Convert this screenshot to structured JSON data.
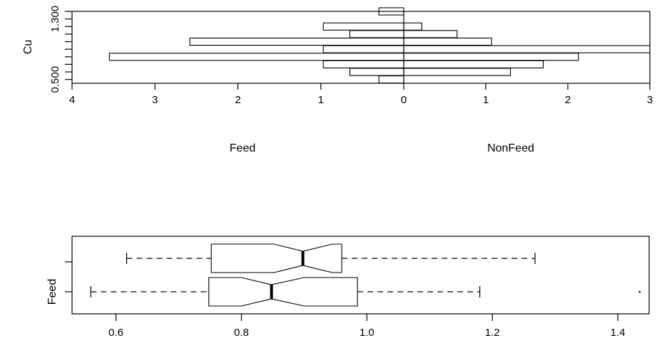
{
  "chart_data": [
    {
      "type": "back-to-back histogram",
      "ylabel": "Cu",
      "y_ticks": [
        "0.500",
        "1.300"
      ],
      "y_ticks_extra": [
        0.5,
        0.6,
        0.7,
        0.8,
        0.9,
        1.0,
        1.1,
        1.2,
        1.3,
        1.4
      ],
      "bins": [
        0.5,
        0.6,
        0.7,
        0.8,
        0.9,
        1.0,
        1.1,
        1.2,
        1.3,
        1.4
      ],
      "left_side": {
        "label": "Feed",
        "xlim": [
          4,
          0
        ],
        "ticks": [
          "4",
          "3",
          "2",
          "1",
          "0"
        ],
        "values": [
          0.3,
          0.65,
          0.97,
          3.55,
          0.97,
          2.58,
          0.65,
          0.97,
          0,
          0.3
        ]
      },
      "right_side": {
        "label": "NonFeed",
        "xlim": [
          0,
          3
        ],
        "ticks": [
          "0",
          "1",
          "2",
          "3"
        ],
        "values": [
          0,
          1.3,
          1.7,
          2.13,
          3.0,
          1.07,
          0.65,
          0.22,
          0,
          0
        ]
      }
    },
    {
      "type": "box",
      "orientation": "horizontal",
      "notched": true,
      "ylabel": "Feed",
      "xlim": [
        0.53,
        1.45
      ],
      "x_ticks": [
        "0.6",
        "0.8",
        "1.0",
        "1.2",
        "1.4"
      ],
      "boxes": [
        {
          "min": 0.56,
          "q1": 0.748,
          "median": 0.848,
          "q3": 0.985,
          "max": 1.18,
          "notch": [
            0.8,
            0.9
          ],
          "outliers": [
            1.435
          ]
        },
        {
          "min": 0.617,
          "q1": 0.752,
          "median": 0.898,
          "q3": 0.96,
          "max": 1.268,
          "notch": [
            0.852,
            0.945
          ],
          "outliers": []
        }
      ]
    }
  ]
}
